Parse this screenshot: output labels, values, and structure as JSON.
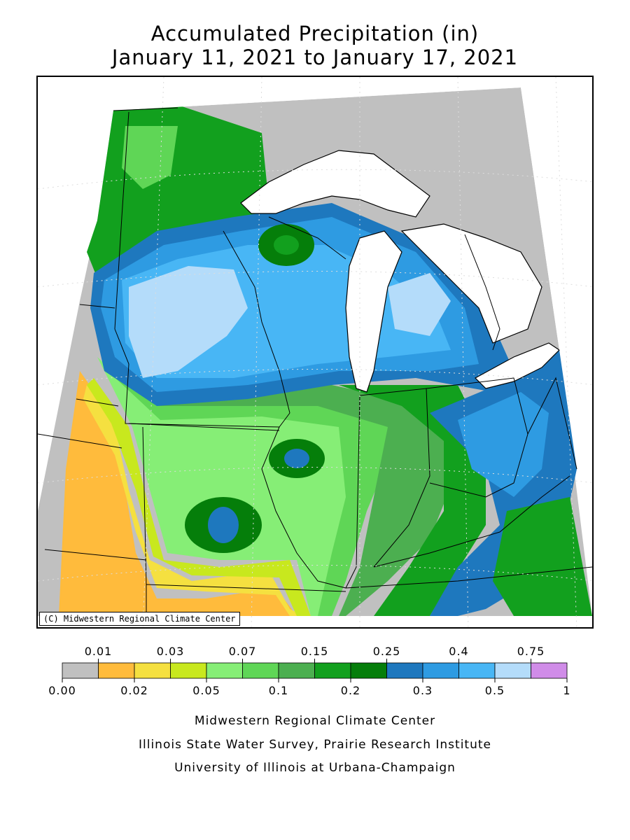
{
  "title": {
    "line1": "Accumulated Precipitation (in)",
    "line2": "January 11, 2021 to January 17, 2021"
  },
  "map": {
    "copyright": "(C) Midwestern Regional Climate Center",
    "background_color": "#c0c0c0",
    "lake_color": "#ffffff"
  },
  "legend": {
    "upper_labels": [
      "0.01",
      "0.03",
      "0.07",
      "0.15",
      "0.25",
      "0.4",
      "0.75"
    ],
    "lower_labels": [
      "0.00",
      "0.02",
      "0.05",
      "0.1",
      "0.2",
      "0.3",
      "0.5",
      "1"
    ],
    "bins": [
      {
        "label": "0.00-0.01",
        "color": "#c0c0c0"
      },
      {
        "label": "0.01-0.02",
        "color": "#ffbb3c"
      },
      {
        "label": "0.02-0.03",
        "color": "#f5e040"
      },
      {
        "label": "0.03-0.05",
        "color": "#c8e81e"
      },
      {
        "label": "0.05-0.07",
        "color": "#86ee76"
      },
      {
        "label": "0.07-0.1",
        "color": "#5fd656"
      },
      {
        "label": "0.1-0.15",
        "color": "#4caf50"
      },
      {
        "label": "0.15-0.2",
        "color": "#12a01e"
      },
      {
        "label": "0.2-0.25",
        "color": "#057e0a"
      },
      {
        "label": "0.25-0.3",
        "color": "#1e78be"
      },
      {
        "label": "0.3-0.4",
        "color": "#2e9be2"
      },
      {
        "label": "0.4-0.5",
        "color": "#48b6f5"
      },
      {
        "label": "0.5-0.75",
        "color": "#b4dcfa"
      },
      {
        "label": "0.75-1",
        "color": "#d08ce8"
      }
    ]
  },
  "credits": {
    "line1": "Midwestern Regional Climate Center",
    "line2": "Illinois State Water Survey, Prairie Research Institute",
    "line3": "University of Illinois at Urbana-Champaign"
  }
}
